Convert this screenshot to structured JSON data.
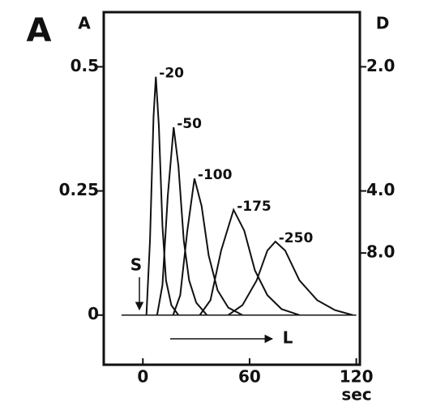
{
  "chart_data": {
    "type": "line",
    "panel_label": "A",
    "y_label": "A",
    "y2_label": "D",
    "x_label": "sec",
    "annotations": [
      "S",
      "L"
    ],
    "xlim": [
      -22,
      122
    ],
    "xticks": [
      0,
      60,
      120
    ],
    "ylim": [
      -0.1,
      0.61
    ],
    "yticks": [
      0,
      0.25,
      0.5
    ],
    "y2scale": "reciprocal",
    "y2ticks": [
      {
        "value": 2,
        "label": "2.0"
      },
      {
        "value": 4,
        "label": "4.0"
      },
      {
        "value": 8,
        "label": "8.0"
      }
    ],
    "color": "#111111",
    "series": [
      {
        "name": "-20",
        "x": [
          2,
          4,
          6,
          7.3,
          9,
          11,
          13,
          16,
          20
        ],
        "values": [
          0,
          0.15,
          0.4,
          0.48,
          0.38,
          0.18,
          0.07,
          0.02,
          0
        ]
      },
      {
        "name": "-50",
        "x": [
          8,
          11,
          14,
          17.3,
          20,
          23,
          26,
          30,
          36
        ],
        "values": [
          0,
          0.06,
          0.24,
          0.378,
          0.3,
          0.15,
          0.07,
          0.025,
          0
        ]
      },
      {
        "name": "-100",
        "x": [
          17,
          21,
          25,
          29,
          33,
          37,
          42,
          48,
          56
        ],
        "values": [
          0,
          0.04,
          0.17,
          0.275,
          0.22,
          0.12,
          0.05,
          0.015,
          0
        ]
      },
      {
        "name": "-175",
        "x": [
          32,
          38,
          44,
          51,
          57,
          63,
          70,
          78,
          88
        ],
        "values": [
          0,
          0.03,
          0.13,
          0.212,
          0.17,
          0.09,
          0.04,
          0.012,
          0
        ]
      },
      {
        "name": "-250",
        "x": [
          48,
          56,
          64,
          70,
          74.5,
          80,
          88,
          98,
          108,
          118
        ],
        "values": [
          0,
          0.02,
          0.07,
          0.13,
          0.148,
          0.13,
          0.07,
          0.03,
          0.01,
          0
        ]
      }
    ]
  }
}
